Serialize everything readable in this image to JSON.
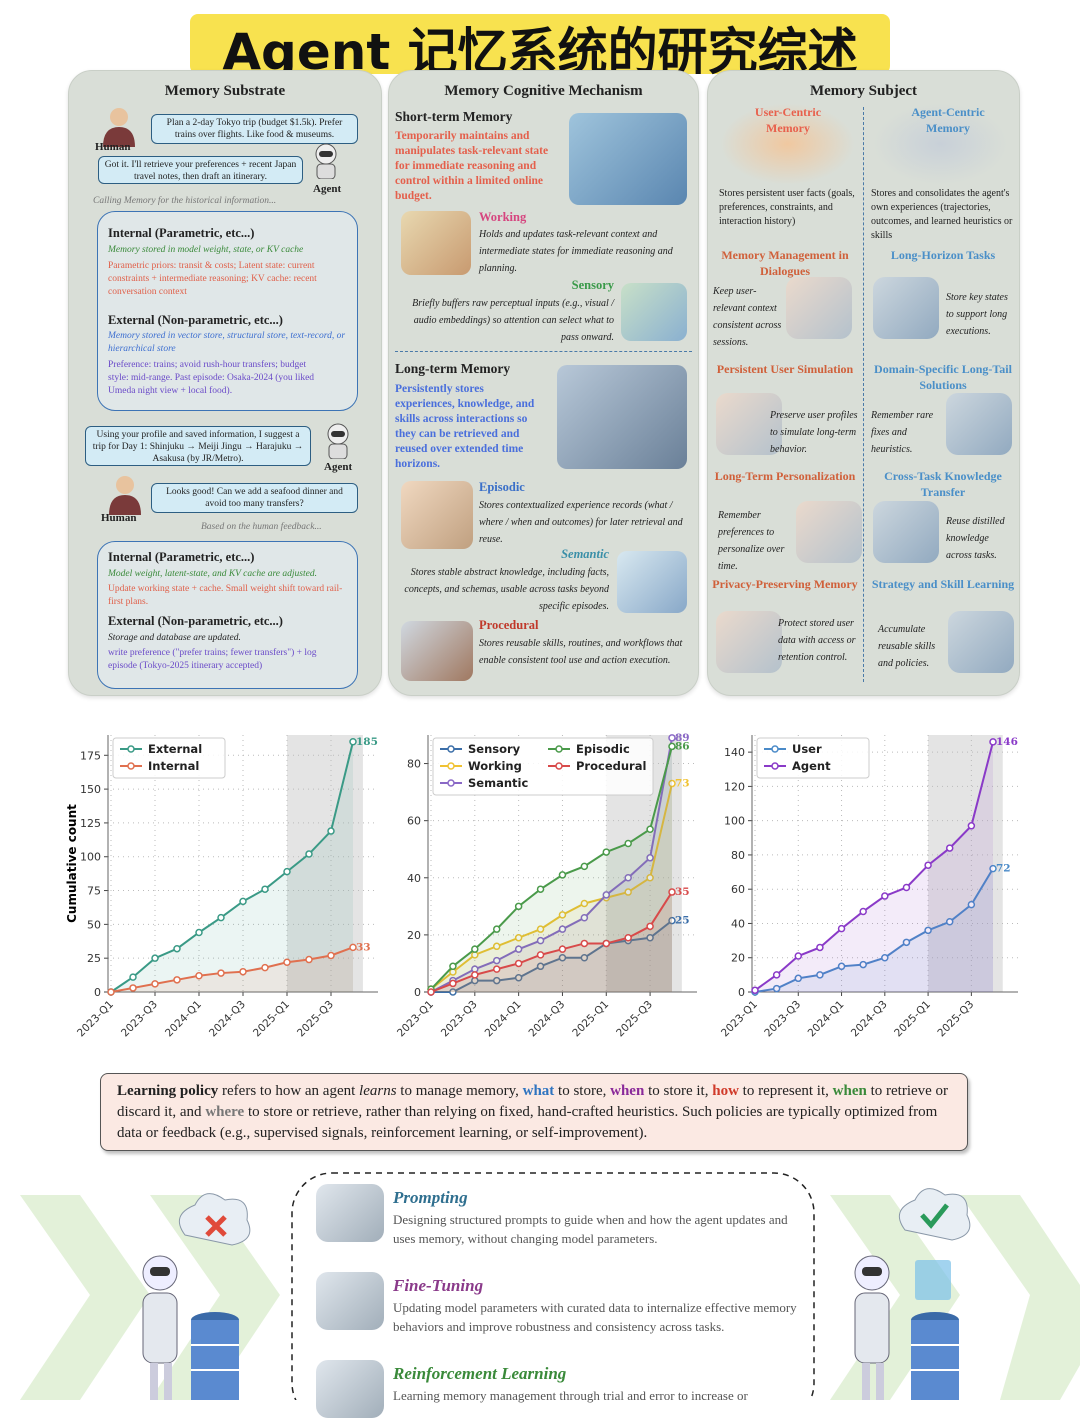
{
  "title": "Agent 记忆系统的研究综述",
  "substrate": {
    "header": "Memory Substrate",
    "human_request": "Plan a 2-day Tokyo trip (budget $1.5k). Prefer trains over flights. Like food & museums.",
    "human_label_1": "Human",
    "agent_reply": "Got it. I'll retrieve your preferences + recent Japan travel notes, then draft an itinerary.",
    "agent_label_1": "Agent",
    "calling_note": "Calling Memory for the historical information...",
    "before": {
      "internal_title": "Internal (Parametric, etc...)",
      "internal_def": "Memory stored in model weight, state, or KV cache",
      "internal_example": "Parametric priors: transit & costs; Latent state: current constraints + intermediate reasoning; KV cache: recent conversation context",
      "external_title": "External (Non-parametric, etc...)",
      "external_def": "Memory stored in vector store, structural store, text-record, or hierarchical store",
      "external_example": "Preference: trains; avoid rush-hour transfers; budget style: mid-range. Past episode: Osaka-2024 (you liked Umeda night view + local food)."
    },
    "agent_suggestion": "Using your profile and saved information, I suggest a trip for Day 1: Shinjuku → Meiji Jingu → Harajuku → Asakusa (by JR/Metro).",
    "agent_label_2": "Agent",
    "human_feedback": "Looks good! Can we add a seafood dinner and avoid too many transfers?",
    "human_label_2": "Human",
    "feedback_note": "Based on the human feedback...",
    "after": {
      "internal_title": "Internal (Parametric, etc...)",
      "internal_def": "Model weight, latent-state, and KV cache are adjusted.",
      "internal_example": "Update working state + cache. Small weight shift toward rail-first plans.",
      "external_title": "External (Non-parametric, etc...)",
      "external_def": "Storage and database are updated.",
      "external_example": "write preference (\"prefer trains; fewer transfers\") + log episode (Tokyo-2025 itinerary accepted)"
    }
  },
  "mechanism": {
    "header": "Memory Cognitive Mechanism",
    "short_term": {
      "title": "Short-term Memory",
      "definition": "Temporarily maintains and manipulates task-relevant state for immediate reasoning and control within a limited online budget."
    },
    "working": {
      "title": "Working",
      "desc": "Holds and updates task-relevant context and intermediate states for immediate reasoning and planning."
    },
    "sensory": {
      "title": "Sensory",
      "desc": "Briefly buffers raw perceptual inputs (e.g., visual / audio embeddings) so attention can select what to pass onward."
    },
    "long_term": {
      "title": "Long-term Memory",
      "definition": "Persistently stores experiences, knowledge, and skills across interactions so they can be retrieved and reused over extended time horizons."
    },
    "episodic": {
      "title": "Episodic",
      "desc": "Stores contextualized experience records (what / where / when and outcomes) for later retrieval and reuse."
    },
    "semantic": {
      "title": "Semantic",
      "desc": "Stores stable abstract knowledge, including facts, concepts, and schemas, usable across tasks beyond specific episodes."
    },
    "procedural": {
      "title": "Procedural",
      "desc": "Stores reusable skills, routines, and workflows that enable consistent tool use and action execution."
    }
  },
  "subject": {
    "header": "Memory Subject",
    "user": {
      "title": "User-Centric Memory",
      "desc": "Stores persistent user facts (goals, preferences, constraints, and interaction history)",
      "items": [
        {
          "title": "Memory Management in Dialogues",
          "desc": "Keep user-relevant context consistent across sessions."
        },
        {
          "title": "Persistent User Simulation",
          "desc": "Preserve user profiles to simulate long-term behavior."
        },
        {
          "title": "Long-Term Personalization",
          "desc": "Remember preferences to personalize over time."
        },
        {
          "title": "Privacy-Preserving Memory",
          "desc": "Protect stored user data with access or retention control."
        }
      ]
    },
    "agent": {
      "title": "Agent-Centric Memory",
      "desc": "Stores and consolidates the agent's own experiences (trajectories, outcomes, and learned heuristics or skills",
      "items": [
        {
          "title": "Long-Horizon Tasks",
          "desc": "Store key states to support long executions."
        },
        {
          "title": "Domain-Specific Long-Tail Solutions",
          "desc": "Remember rare fixes and heuristics."
        },
        {
          "title": "Cross-Task Knowledge Transfer",
          "desc": "Reuse distilled knowledge across tasks."
        },
        {
          "title": "Strategy and Skill Learning",
          "desc": "Accumulate reusable skills and policies."
        }
      ]
    }
  },
  "chart_data": [
    {
      "type": "line",
      "ylabel": "Cumulative count",
      "categories": [
        "2023-Q1",
        null,
        "2023-Q3",
        null,
        "2024-Q1",
        null,
        "2024-Q3",
        null,
        "2025-Q1",
        null,
        "2025-Q3",
        null
      ],
      "highlight_from": "2025-Q1",
      "ylim": [
        0,
        190
      ],
      "yticks": [
        0,
        25,
        50,
        75,
        100,
        125,
        150,
        175
      ],
      "grid": true,
      "legend": "upper left",
      "series": [
        {
          "name": "External",
          "color": "#3a9a86",
          "values": [
            0,
            11,
            25,
            32,
            44,
            55,
            67,
            76,
            89,
            102,
            119,
            185
          ]
        },
        {
          "name": "Internal",
          "color": "#e0704f",
          "values": [
            0,
            3,
            6,
            9,
            12,
            14,
            15,
            18,
            22,
            24,
            27,
            33
          ]
        }
      ]
    },
    {
      "type": "line",
      "categories": [
        "2023-Q1",
        null,
        "2023-Q3",
        null,
        "2024-Q1",
        null,
        "2024-Q3",
        null,
        "2025-Q1",
        null,
        "2025-Q3",
        null
      ],
      "highlight_from": "2025-Q1",
      "ylim": [
        0,
        90
      ],
      "yticks": [
        0,
        20,
        40,
        60,
        80
      ],
      "grid": true,
      "legend": "upper left",
      "series": [
        {
          "name": "Sensory",
          "color": "#3b6ea8",
          "values": [
            0,
            0,
            4,
            4,
            5,
            9,
            12,
            12,
            17,
            18,
            19,
            25
          ]
        },
        {
          "name": "Working",
          "color": "#f0c232",
          "values": [
            1,
            7,
            13,
            16,
            19,
            22,
            27,
            31,
            33,
            35,
            40,
            73
          ]
        },
        {
          "name": "Semantic",
          "color": "#8a68c6",
          "values": [
            0,
            4,
            8,
            11,
            15,
            18,
            22,
            26,
            34,
            40,
            47,
            89
          ]
        },
        {
          "name": "Episodic",
          "color": "#4a9a4a",
          "values": [
            1,
            9,
            15,
            22,
            30,
            36,
            41,
            44,
            49,
            52,
            57,
            86
          ]
        },
        {
          "name": "Procedural",
          "color": "#d84a4a",
          "values": [
            0,
            3,
            6,
            8,
            10,
            13,
            15,
            17,
            17,
            19,
            23,
            35
          ]
        }
      ]
    },
    {
      "type": "line",
      "categories": [
        "2023-Q1",
        null,
        "2023-Q3",
        null,
        "2024-Q1",
        null,
        "2024-Q3",
        null,
        "2025-Q1",
        null,
        "2025-Q3",
        null
      ],
      "highlight_from": "2025-Q1",
      "ylim": [
        0,
        150
      ],
      "yticks": [
        0,
        20,
        40,
        60,
        80,
        100,
        120,
        140
      ],
      "grid": true,
      "legend": "upper left",
      "series": [
        {
          "name": "User",
          "color": "#4a8ac8",
          "values": [
            0,
            2,
            8,
            10,
            15,
            16,
            20,
            29,
            36,
            41,
            51,
            72
          ]
        },
        {
          "name": "Agent",
          "color": "#8a3ac8",
          "values": [
            1,
            10,
            21,
            26,
            37,
            47,
            56,
            61,
            74,
            84,
            97,
            146
          ]
        }
      ]
    }
  ],
  "learning_policy": {
    "segments": [
      {
        "text": "Learning policy",
        "color": "#222",
        "style": "bold"
      },
      {
        "text": " refers to how an agent ",
        "color": "#222",
        "style": "normal"
      },
      {
        "text": "learns",
        "color": "#222",
        "style": "italic"
      },
      {
        "text": " to manage memory, ",
        "color": "#222",
        "style": "normal"
      },
      {
        "text": "what",
        "color": "#2f74c0",
        "style": "bold"
      },
      {
        "text": " to store, ",
        "color": "#222",
        "style": "normal"
      },
      {
        "text": "when",
        "color": "#8a2a9a",
        "style": "bold"
      },
      {
        "text": " to store it, ",
        "color": "#222",
        "style": "normal"
      },
      {
        "text": "how",
        "color": "#d03a2a",
        "style": "bold"
      },
      {
        "text": " to represent it, ",
        "color": "#222",
        "style": "normal"
      },
      {
        "text": "when",
        "color": "#3a8a3a",
        "style": "bold"
      },
      {
        "text": " to retrieve or discard it, and ",
        "color": "#222",
        "style": "normal"
      },
      {
        "text": "where",
        "color": "#777",
        "style": "bold"
      },
      {
        "text": " to store or retrieve, rather than relying on fixed, hand-crafted heuristics. Such policies are typically optimized from data or feedback (e.g., supervised signals, reinforcement learning, or self-improvement).",
        "color": "#222",
        "style": "normal"
      }
    ]
  },
  "methods": [
    {
      "title": "Prompting",
      "color": "#2f6f8f",
      "desc": "Designing structured prompts to guide when and how the agent updates and uses memory, without changing model parameters."
    },
    {
      "title": "Fine-Tuning",
      "color": "#8a3a8a",
      "desc": "Updating model parameters with curated data to internalize effective memory behaviors and improve robustness and consistency across tasks."
    },
    {
      "title": "Reinforcement Learning",
      "color": "#3a8a3a",
      "desc": "Learning memory management through trial and error to increase or"
    }
  ]
}
